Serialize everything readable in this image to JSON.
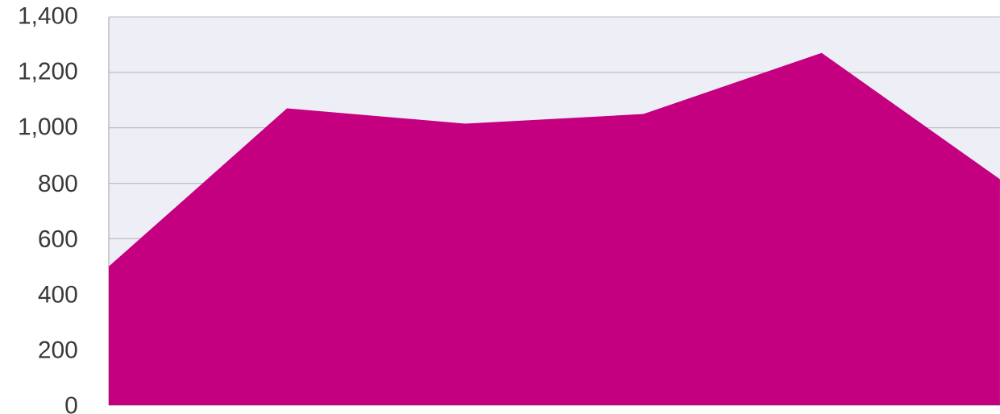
{
  "chart_data": {
    "type": "area",
    "categories": [
      null,
      null,
      null,
      null,
      null,
      null
    ],
    "values": [
      500,
      1070,
      1015,
      1050,
      1270,
      815
    ],
    "color": "#c40080",
    "ylim": [
      0,
      1400
    ],
    "yticks": [
      0,
      200,
      400,
      600,
      800,
      {
        "value": 1000,
        "label": "1,000"
      },
      {
        "value": 1200,
        "label": "1,200"
      },
      {
        "value": 1400,
        "label": "1,400"
      }
    ],
    "grid": "y"
  }
}
